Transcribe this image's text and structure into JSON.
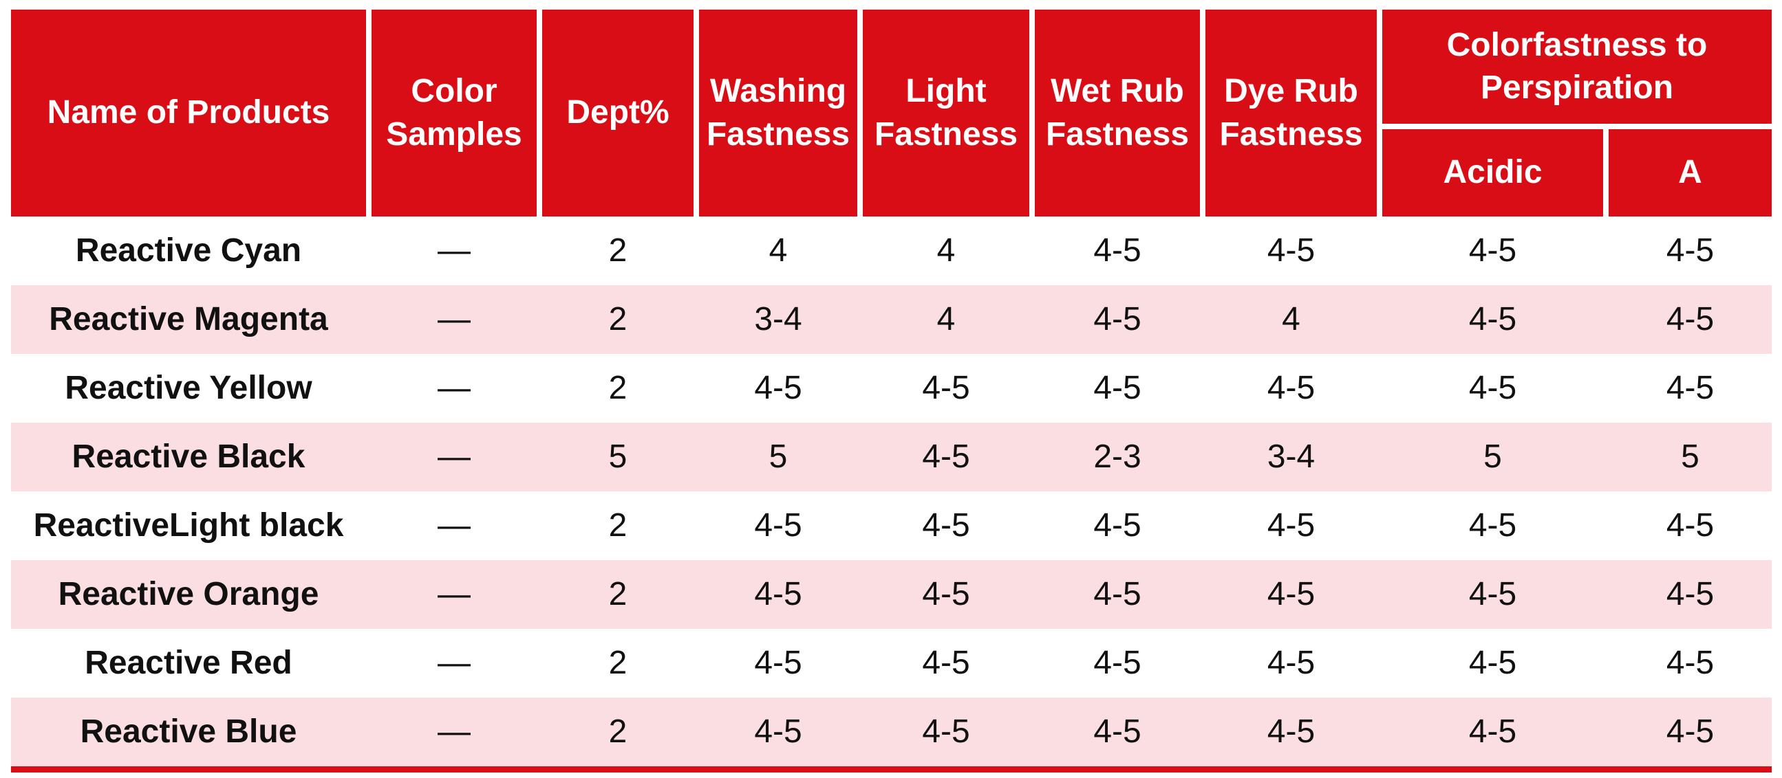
{
  "colors": {
    "header_red": "#d90d15",
    "row_pink": "#fbdee1",
    "row_white": "#ffffff",
    "header_text": "#ffffff",
    "body_text": "#111111"
  },
  "table": {
    "column_headers": {
      "name": "Name of Products",
      "color_samples": "Color Samples",
      "dept": "Dept%",
      "washing": "Washing Fastness",
      "light": "Light Fastness",
      "wet_rub": "Wet Rub Fastness",
      "dye_rub": "Dye Rub Fastness",
      "perspiration_group": "Colorfastness to Perspiration",
      "perspiration_acidic": "Acidic",
      "perspiration_a": "A"
    },
    "rows": [
      {
        "cells": [
          "Reactive Cyan",
          "—",
          "2",
          "4",
          "4",
          "4-5",
          "4-5",
          "4-5",
          "4-5"
        ]
      },
      {
        "cells": [
          "Reactive Magenta",
          "—",
          "2",
          "3-4",
          "4",
          "4-5",
          "4",
          "4-5",
          "4-5"
        ]
      },
      {
        "cells": [
          "Reactive Yellow",
          "—",
          "2",
          "4-5",
          "4-5",
          "4-5",
          "4-5",
          "4-5",
          "4-5"
        ]
      },
      {
        "cells": [
          "Reactive Black",
          "—",
          "5",
          "5",
          "4-5",
          "2-3",
          "3-4",
          "5",
          "5"
        ]
      },
      {
        "cells": [
          "ReactiveLight black",
          "—",
          "2",
          "4-5",
          "4-5",
          "4-5",
          "4-5",
          "4-5",
          "4-5"
        ]
      },
      {
        "cells": [
          "Reactive Orange",
          "—",
          "2",
          "4-5",
          "4-5",
          "4-5",
          "4-5",
          "4-5",
          "4-5"
        ]
      },
      {
        "cells": [
          "Reactive Red",
          "—",
          "2",
          "4-5",
          "4-5",
          "4-5",
          "4-5",
          "4-5",
          "4-5"
        ]
      },
      {
        "cells": [
          "Reactive Blue",
          "—",
          "2",
          "4-5",
          "4-5",
          "4-5",
          "4-5",
          "4-5",
          "4-5"
        ]
      }
    ]
  }
}
